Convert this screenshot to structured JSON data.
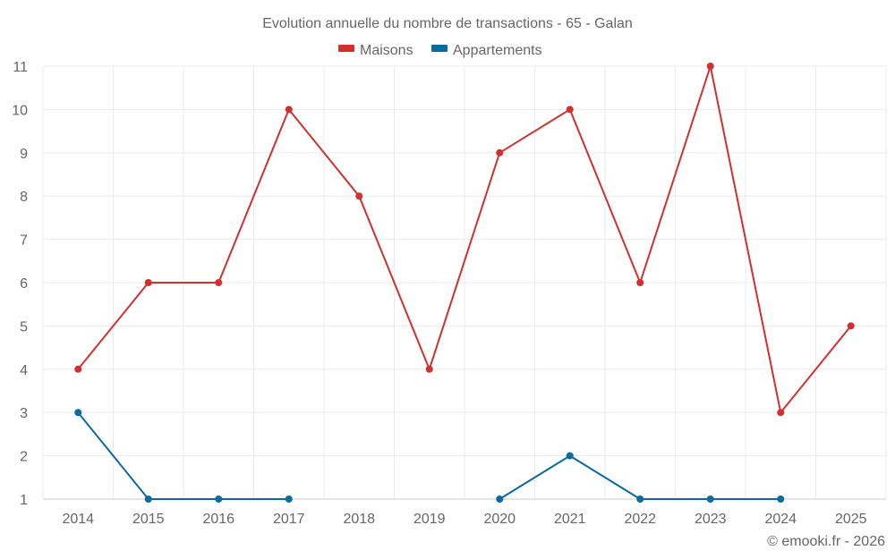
{
  "chart_data": {
    "type": "line",
    "title": "Evolution annuelle du nombre de transactions - 65 - Galan",
    "categories": [
      "2014",
      "2015",
      "2016",
      "2017",
      "2018",
      "2019",
      "2020",
      "2021",
      "2022",
      "2023",
      "2024",
      "2025"
    ],
    "series": [
      {
        "name": "Maisons",
        "color": "#d32f2f",
        "values": [
          4,
          6,
          6,
          10,
          8,
          4,
          9,
          10,
          6,
          11,
          3,
          5
        ]
      },
      {
        "name": "Appartements",
        "color": "#0b6aa2",
        "values": [
          3,
          1,
          1,
          1,
          null,
          null,
          1,
          2,
          1,
          1,
          1,
          null
        ]
      }
    ],
    "ylim": [
      1,
      11
    ],
    "yticks": [
      1,
      2,
      3,
      4,
      5,
      6,
      7,
      8,
      9,
      10,
      11
    ],
    "grid": true,
    "legend": "top-center",
    "xlabel": "",
    "ylabel": ""
  },
  "footer": {
    "copyright": "© emooki.fr - 2026"
  }
}
